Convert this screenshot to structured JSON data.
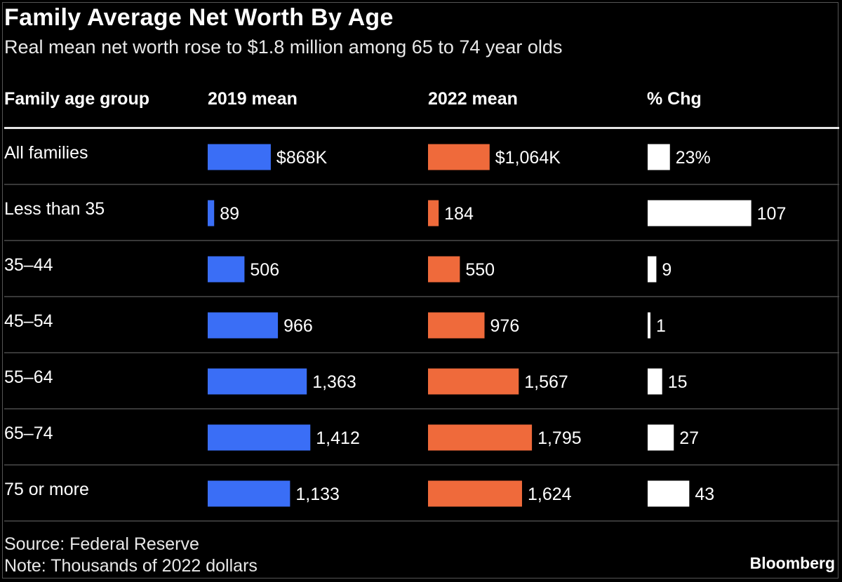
{
  "title": "Family Average Net Worth By Age",
  "subtitle": "Real mean net worth rose to $1.8 million among 65 to 74 year olds",
  "headers": {
    "group": "Family age group",
    "mean2019": "2019 mean",
    "mean2022": "2022 mean",
    "pct": "% Chg"
  },
  "colors": {
    "mean2019": "#3a6ef6",
    "mean2022": "#ef6a3b",
    "pct": "#ffffff",
    "divider": "#4a4a4a"
  },
  "chart_data": {
    "type": "table",
    "categories": [
      "All families",
      "Less than 35",
      "35–44",
      "45–54",
      "55–64",
      "65–74",
      "75 or more"
    ],
    "series": [
      {
        "name": "2019 mean",
        "values": [
          868,
          89,
          506,
          966,
          1363,
          1412,
          1133
        ],
        "labels": [
          "$868K",
          "89",
          "506",
          "966",
          "1,363",
          "1,412",
          "1,133"
        ]
      },
      {
        "name": "2022 mean",
        "values": [
          1064,
          184,
          550,
          976,
          1567,
          1795,
          1624
        ],
        "labels": [
          "$1,064K",
          "184",
          "550",
          "976",
          "1,567",
          "1,795",
          "1,624"
        ]
      },
      {
        "name": "% Chg",
        "values": [
          23,
          107,
          9,
          1,
          15,
          27,
          43
        ],
        "labels": [
          "23%",
          "107",
          "9",
          "1",
          "15",
          "27",
          "43"
        ]
      }
    ]
  },
  "source": "Source: Federal Reserve",
  "note": "Note: Thousands of 2022 dollars",
  "brand": "Bloomberg"
}
